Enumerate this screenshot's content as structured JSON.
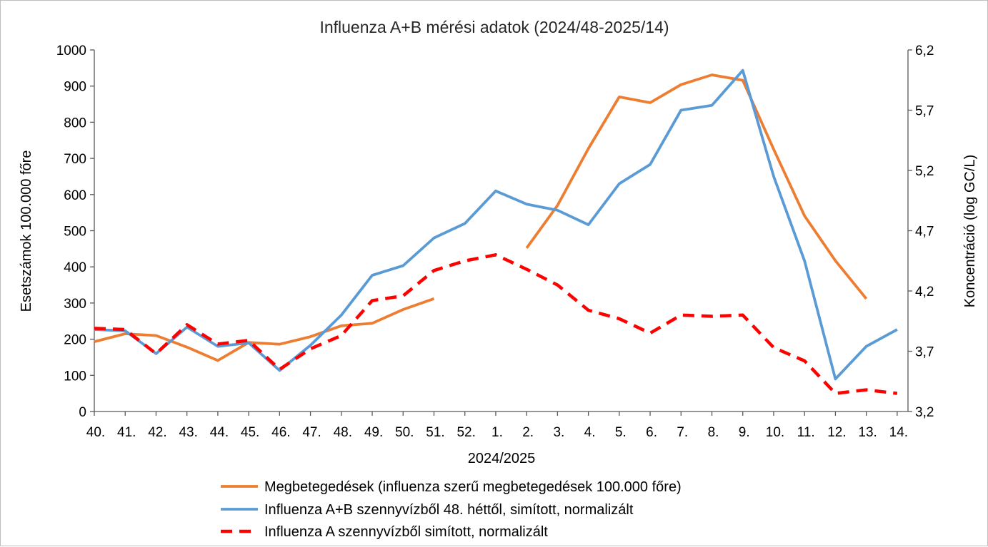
{
  "chart_data": {
    "type": "line",
    "title": "Influenza A+B mérési adatok (2024/48-2025/14)",
    "xlabel": "2024/2025",
    "ylabel_left": "Esetszámok 100.000 főre",
    "ylabel_right": "Koncentráció (log GC/L)",
    "categories": [
      "40.",
      "41.",
      "42.",
      "43.",
      "44.",
      "45.",
      "46.",
      "47.",
      "48.",
      "49.",
      "50.",
      "51.",
      "52.",
      "1.",
      "2.",
      "3.",
      "4.",
      "5.",
      "6.",
      "7.",
      "8.",
      "9.",
      "10.",
      "11.",
      "12.",
      "13.",
      "14."
    ],
    "ylim_left": [
      0,
      1000
    ],
    "yticks_left": [
      "0",
      "100",
      "200",
      "300",
      "400",
      "500",
      "600",
      "700",
      "800",
      "900",
      "1000"
    ],
    "ylim_right": [
      3.2,
      6.2
    ],
    "yticks_right": [
      "3,2",
      "3,7",
      "4,2",
      "4,7",
      "5,2",
      "5,7",
      "6,2"
    ],
    "grid": false,
    "legend_position": "bottom",
    "series": [
      {
        "name": "Megbetegedések (influenza szerű megbetegedések 100.000 főre)",
        "axis": "left",
        "color": "#ED7D31",
        "style": "solid",
        "values": [
          193,
          215,
          210,
          178,
          141,
          191,
          186,
          207,
          237,
          244,
          282,
          312,
          null,
          null,
          452,
          570,
          727,
          870,
          854,
          904,
          931,
          916,
          725,
          541,
          417,
          312,
          null
        ]
      },
      {
        "name": "Influenza A+B szennyvízből 48. héttől, simított, normalizált",
        "axis": "right",
        "color": "#5B9BD5",
        "style": "solid",
        "values": [
          3.88,
          3.87,
          3.68,
          3.9,
          3.74,
          3.77,
          3.54,
          3.75,
          4.0,
          4.33,
          4.41,
          4.64,
          4.76,
          5.03,
          4.92,
          4.87,
          4.75,
          5.09,
          5.25,
          5.7,
          5.74,
          6.03,
          5.15,
          4.45,
          3.47,
          3.74,
          3.88
        ]
      },
      {
        "name": "Influenza A szennyvízből simított, normalizált",
        "axis": "right",
        "color": "#FF0000",
        "style": "dashed",
        "values": [
          3.89,
          3.88,
          3.68,
          3.92,
          3.76,
          3.79,
          3.55,
          3.72,
          3.83,
          4.12,
          4.16,
          4.37,
          4.45,
          4.5,
          4.38,
          4.25,
          4.04,
          3.97,
          3.85,
          4.0,
          3.99,
          4.0,
          3.73,
          3.62,
          3.35,
          3.38,
          3.35
        ]
      }
    ]
  }
}
